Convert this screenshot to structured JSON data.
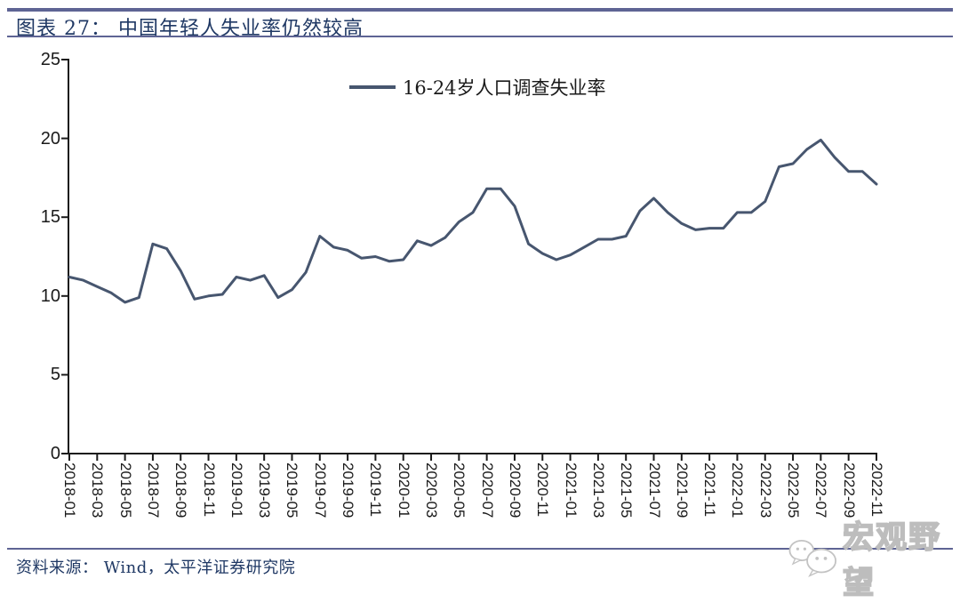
{
  "header": {
    "title": "图表 27：  中国年轻人失业率仍然较高"
  },
  "chart_data": {
    "type": "line",
    "title": "图表 27：中国年轻人失业率仍然较高",
    "xlabel": "",
    "ylabel": "",
    "ylim": [
      0,
      25
    ],
    "yticks": [
      0,
      5,
      10,
      15,
      20,
      25
    ],
    "x_tick_every": 2,
    "grid": false,
    "legend_position": "top-center",
    "x": [
      "2018-01",
      "2018-02",
      "2018-03",
      "2018-04",
      "2018-05",
      "2018-06",
      "2018-07",
      "2018-08",
      "2018-09",
      "2018-10",
      "2018-11",
      "2018-12",
      "2019-01",
      "2019-02",
      "2019-03",
      "2019-04",
      "2019-05",
      "2019-06",
      "2019-07",
      "2019-08",
      "2019-09",
      "2019-10",
      "2019-11",
      "2019-12",
      "2020-01",
      "2020-02",
      "2020-03",
      "2020-04",
      "2020-05",
      "2020-06",
      "2020-07",
      "2020-08",
      "2020-09",
      "2020-10",
      "2020-11",
      "2020-12",
      "2021-01",
      "2021-02",
      "2021-03",
      "2021-04",
      "2021-05",
      "2021-06",
      "2021-07",
      "2021-08",
      "2021-09",
      "2021-10",
      "2021-11",
      "2021-12",
      "2022-01",
      "2022-02",
      "2022-03",
      "2022-04",
      "2022-05",
      "2022-06",
      "2022-07",
      "2022-08",
      "2022-09",
      "2022-10",
      "2022-11"
    ],
    "series": [
      {
        "name": "16-24岁人口调查失业率",
        "color": "#47566F",
        "values": [
          11.2,
          11.0,
          10.6,
          10.2,
          9.6,
          9.9,
          13.3,
          13.0,
          11.6,
          9.8,
          10.0,
          10.1,
          11.2,
          11.0,
          11.3,
          9.9,
          10.4,
          11.5,
          13.8,
          13.1,
          12.9,
          12.4,
          12.5,
          12.2,
          12.3,
          13.5,
          13.2,
          13.7,
          14.7,
          15.3,
          16.8,
          16.8,
          15.7,
          13.3,
          12.7,
          12.3,
          12.6,
          13.1,
          13.6,
          13.6,
          13.8,
          15.4,
          16.2,
          15.3,
          14.6,
          14.2,
          14.3,
          14.3,
          15.3,
          15.3,
          16.0,
          18.2,
          18.4,
          19.3,
          19.9,
          18.8,
          17.9,
          17.9,
          17.1
        ]
      }
    ]
  },
  "footer": {
    "source": "资料来源：  Wind，太平洋证券研究院"
  },
  "watermark": {
    "text": "宏观野望",
    "icon": "wechat-bubbles-icon"
  },
  "colors": {
    "accent_rule": "#5E6494",
    "title_text": "#1F3864",
    "line": "#47566F",
    "axis": "#1a1a1a",
    "watermark_gray": "#bdbdbd"
  }
}
